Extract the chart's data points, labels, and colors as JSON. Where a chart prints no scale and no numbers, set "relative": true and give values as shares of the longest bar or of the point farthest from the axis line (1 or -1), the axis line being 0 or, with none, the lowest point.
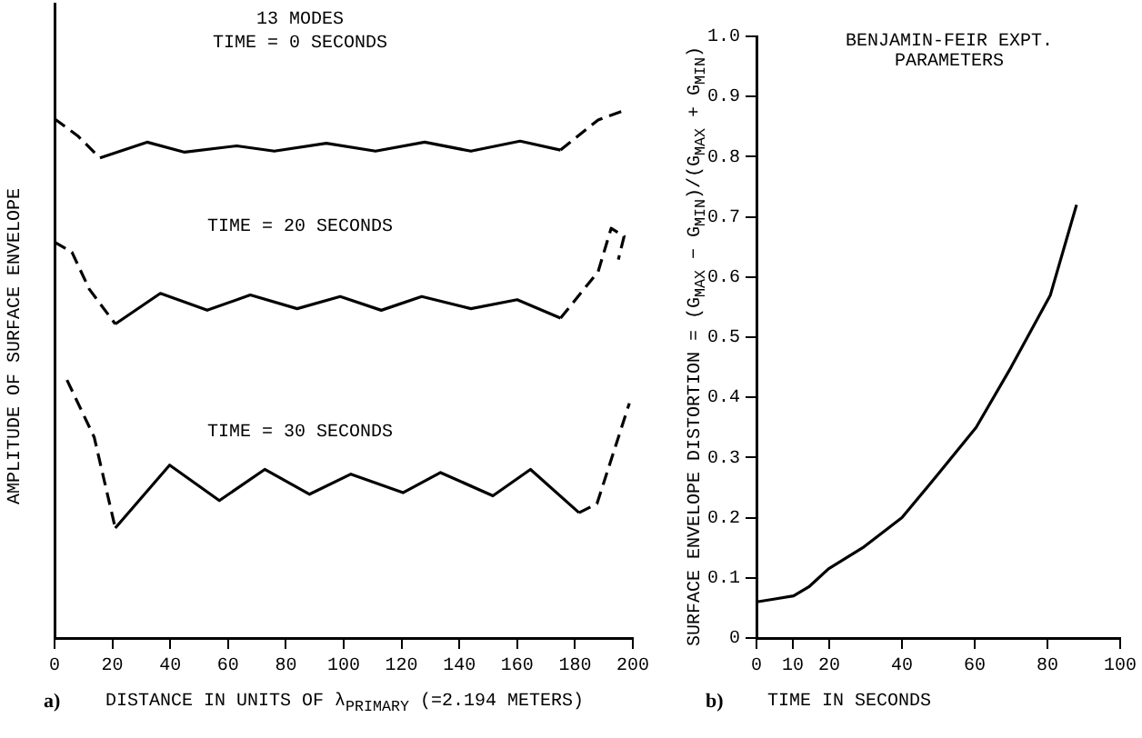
{
  "chart_data": [
    {
      "type": "line",
      "title": "a)",
      "xlabel": "DISTANCE IN UNITS OF λ$_{PRIMARY}$ (=2.194 METERS)",
      "ylabel": "AMPLITUDE OF SURFACE ENVELOPE",
      "relative": true,
      "xlim": [
        0,
        200
      ],
      "xticks": [
        0,
        20,
        40,
        60,
        80,
        100,
        120,
        140,
        160,
        180,
        200
      ],
      "grid": false,
      "legend": false,
      "marker": "none",
      "annotations": [
        "13 MODES",
        "TIME = 0 SECONDS",
        "TIME = 20 SECONDS",
        "TIME = 30 SECONDS"
      ],
      "series": [
        {
          "color": "#000000",
          "line_style": "dashed",
          "x": [
            0,
            8,
            15.7
          ],
          "values": [
            0.982,
            0.95,
            0.908
          ]
        },
        {
          "color": "#000000",
          "line_style": "solid",
          "x": [
            15.7,
            32,
            45,
            63,
            76,
            94,
            111,
            128,
            144,
            161,
            175
          ],
          "values": [
            0.908,
            0.938,
            0.919,
            0.931,
            0.921,
            0.936,
            0.921,
            0.938,
            0.921,
            0.94,
            0.923
          ]
        },
        {
          "color": "#000000",
          "line_style": "dashed",
          "x": [
            175,
            188,
            198
          ],
          "values": [
            0.923,
            0.98,
            1.0
          ]
        },
        {
          "color": "#000000",
          "line_style": "dashed",
          "x": [
            0,
            6,
            12,
            21
          ],
          "values": [
            0.749,
            0.73,
            0.66,
            0.594
          ]
        },
        {
          "color": "#000000",
          "line_style": "solid",
          "x": [
            21,
            36.6,
            52.8,
            67.7,
            83.9,
            98.8,
            113,
            127,
            144,
            160,
            175
          ],
          "values": [
            0.594,
            0.652,
            0.62,
            0.649,
            0.623,
            0.646,
            0.62,
            0.646,
            0.623,
            0.64,
            0.605
          ]
        },
        {
          "color": "#000000",
          "line_style": "dashed",
          "x": [
            175,
            188,
            192.5,
            197,
            195
          ],
          "values": [
            0.605,
            0.693,
            0.775,
            0.76,
            0.716
          ]
        },
        {
          "color": "#000000",
          "line_style": "dashed",
          "x": [
            4.3,
            13.7,
            21
          ],
          "values": [
            0.488,
            0.38,
            0.208
          ]
        },
        {
          "color": "#000000",
          "line_style": "solid",
          "x": [
            21,
            39.8,
            57,
            72.7,
            88.2,
            102.5,
            120.5,
            133.5,
            151.6,
            164.6,
            181.4
          ],
          "values": [
            0.208,
            0.327,
            0.26,
            0.319,
            0.272,
            0.31,
            0.275,
            0.313,
            0.269,
            0.319,
            0.237
          ]
        },
        {
          "color": "#000000",
          "line_style": "dashed",
          "x": [
            181.4,
            187.6,
            198.8
          ],
          "values": [
            0.237,
            0.254,
            0.444
          ]
        }
      ]
    },
    {
      "type": "line",
      "title": "b)",
      "xlabel": "TIME IN SECONDS",
      "ylabel": "SURFACE ENVELOPE DISTORTION = (G$_{MAX}$ − G$_{MIN}$)/(G$_{MAX}$ + G$_{MIN}$)",
      "xlim": [
        0,
        100
      ],
      "xticks": [
        0,
        10,
        20,
        40,
        60,
        80,
        100
      ],
      "ylim": [
        0,
        1.0
      ],
      "yticks": [
        0,
        0.1,
        0.2,
        0.3,
        0.4,
        0.5,
        0.6,
        0.7,
        0.8,
        0.9,
        {
          "value": 1.0,
          "label": "1.0"
        }
      ],
      "grid": false,
      "legend": false,
      "marker": "none",
      "annotations": [
        "BENJAMIN-FEIR EXPT. PARAMETERS"
      ],
      "series": [
        {
          "color": "#000000",
          "line_style": "solid",
          "x": [
            0,
            5.1,
            10.2,
            14.4,
            19.8,
            29.2,
            40,
            49.6,
            60.4,
            70,
            80.8,
            88
          ],
          "values": [
            0.06,
            0.065,
            0.07,
            0.085,
            0.115,
            0.15,
            0.2,
            0.27,
            0.35,
            0.45,
            0.57,
            0.72
          ]
        }
      ]
    }
  ]
}
